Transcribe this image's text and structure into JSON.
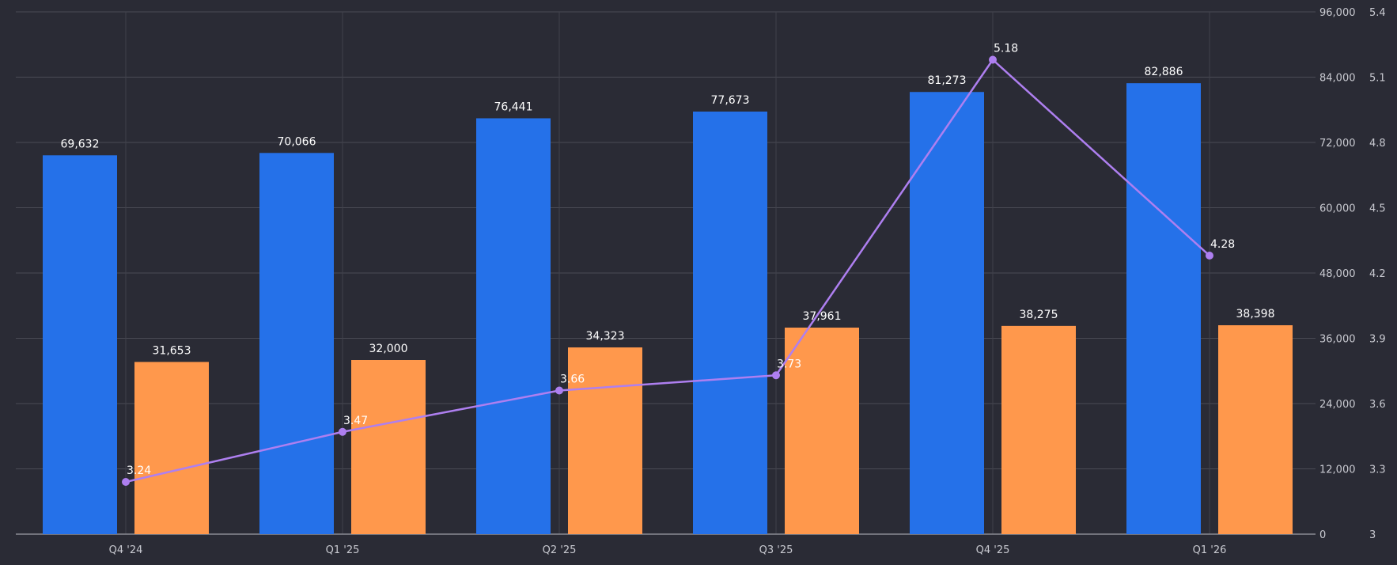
{
  "chart_data": {
    "type": "bar",
    "categories": [
      "Q4 '24",
      "Q1 '25",
      "Q2 '25",
      "Q3 '25",
      "Q4 '25",
      "Q1 '26"
    ],
    "series": [
      {
        "type": "bar",
        "axis": "left",
        "color": "#2571e9",
        "values": [
          69632,
          70066,
          76441,
          77673,
          81273,
          82886
        ],
        "labels": [
          "69,632",
          "70,066",
          "76,441",
          "77,673",
          "81,273",
          "82,886"
        ]
      },
      {
        "type": "bar",
        "axis": "left",
        "color": "#ff984c",
        "values": [
          31653,
          32000,
          34323,
          37961,
          38275,
          38398
        ],
        "labels": [
          "31,653",
          "32,000",
          "34,323",
          "37,961",
          "38,275",
          "38,398"
        ]
      },
      {
        "type": "line",
        "axis": "right",
        "color": "#ae7ff0",
        "values": [
          3.24,
          3.47,
          3.66,
          3.73,
          5.18,
          4.28
        ],
        "labels": [
          "3.24",
          "3.47",
          "3.66",
          "3.73",
          "5.18",
          "4.28"
        ]
      }
    ],
    "left_axis": {
      "range": [
        0,
        96000
      ],
      "ticks": [
        0,
        12000,
        24000,
        36000,
        48000,
        60000,
        72000,
        84000,
        96000
      ],
      "tick_labels": [
        "0",
        "12,000",
        "24,000",
        "36,000",
        "48,000",
        "60,000",
        "72,000",
        "84,000",
        "96,000"
      ]
    },
    "right_axis": {
      "range": [
        3,
        5.4
      ],
      "ticks": [
        3,
        3.3,
        3.6,
        3.9,
        4.2,
        4.5,
        4.8,
        5.1,
        5.4
      ],
      "tick_labels": [
        "3",
        "3.3",
        "3.6",
        "3.9",
        "4.2",
        "4.5",
        "4.8",
        "5.1",
        "5.4"
      ]
    },
    "grid": true,
    "legend": "none"
  }
}
